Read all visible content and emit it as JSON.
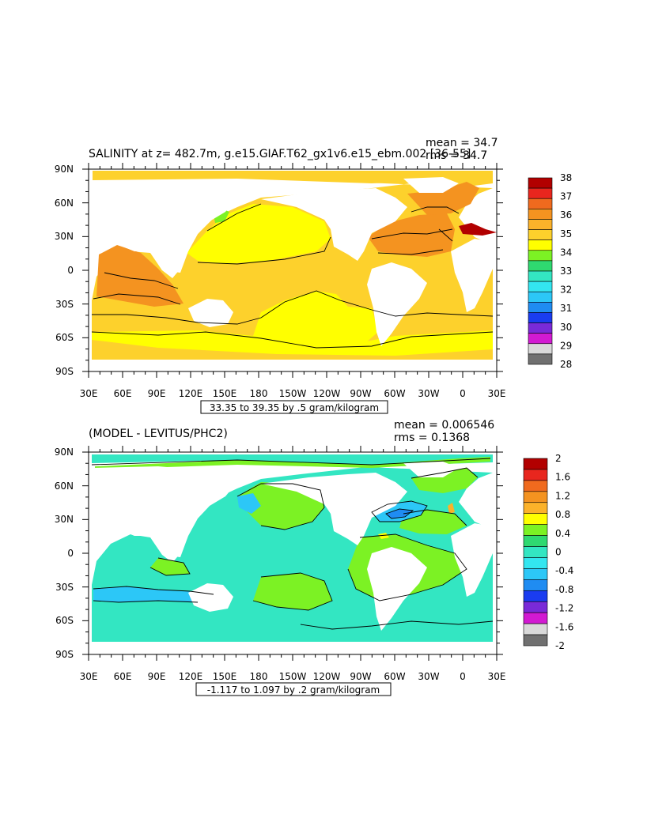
{
  "top_panel": {
    "title": "SALINITY at z= 482.7m, g.e15.GIAF.T62_gx1v6.e15_ebm.002 [36-55]",
    "mean_label": "mean = 34.7",
    "rms_label": "rms = 34.7",
    "contour_info": "33.35 to 39.35 by .5 gram/kilogram",
    "colorbar": {
      "labels": [
        "38",
        "37",
        "36",
        "35",
        "34",
        "33",
        "32",
        "31",
        "30",
        "29",
        "28"
      ],
      "colors": [
        "#b20000",
        "#e8261e",
        "#f06a1e",
        "#f49320",
        "#fbb22a",
        "#fdd12c",
        "#ffff00",
        "#7cf224",
        "#2fd970",
        "#33e6c2",
        "#33e6f0",
        "#2cc7f7",
        "#1f8cf2",
        "#1a3cf0",
        "#7a2ad8",
        "#d21ad2",
        "#d9d9d9",
        "#707070"
      ]
    }
  },
  "bottom_panel": {
    "title": "(MODEL - LEVITUS/PHC2)",
    "mean_label": "mean = 0.006546",
    "rms_label": "rms = 0.1368",
    "contour_info": "-1.117 to 1.097 by .2 gram/kilogram",
    "colorbar": {
      "labels": [
        "2",
        "1.6",
        "1.2",
        "0.8",
        "0.4",
        "0",
        "-0.4",
        "-0.8",
        "-1.2",
        "-1.6",
        "-2"
      ],
      "colors": [
        "#b20000",
        "#e8261e",
        "#f06a1e",
        "#f49320",
        "#fbb22a",
        "#ffff00",
        "#7cf224",
        "#2fd970",
        "#33e6c2",
        "#33e6f0",
        "#2cc7f7",
        "#1f8cf2",
        "#1a3cf0",
        "#7a2ad8",
        "#d21ad2",
        "#d9d9d9",
        "#707070"
      ]
    }
  },
  "axes": {
    "lon_ticks": [
      "30E",
      "60E",
      "90E",
      "120E",
      "150E",
      "180",
      "150W",
      "120W",
      "90W",
      "60W",
      "30W",
      "0",
      "30E"
    ],
    "lat_ticks": [
      "90N",
      "60N",
      "30N",
      "0",
      "30S",
      "60S",
      "90S"
    ]
  }
}
